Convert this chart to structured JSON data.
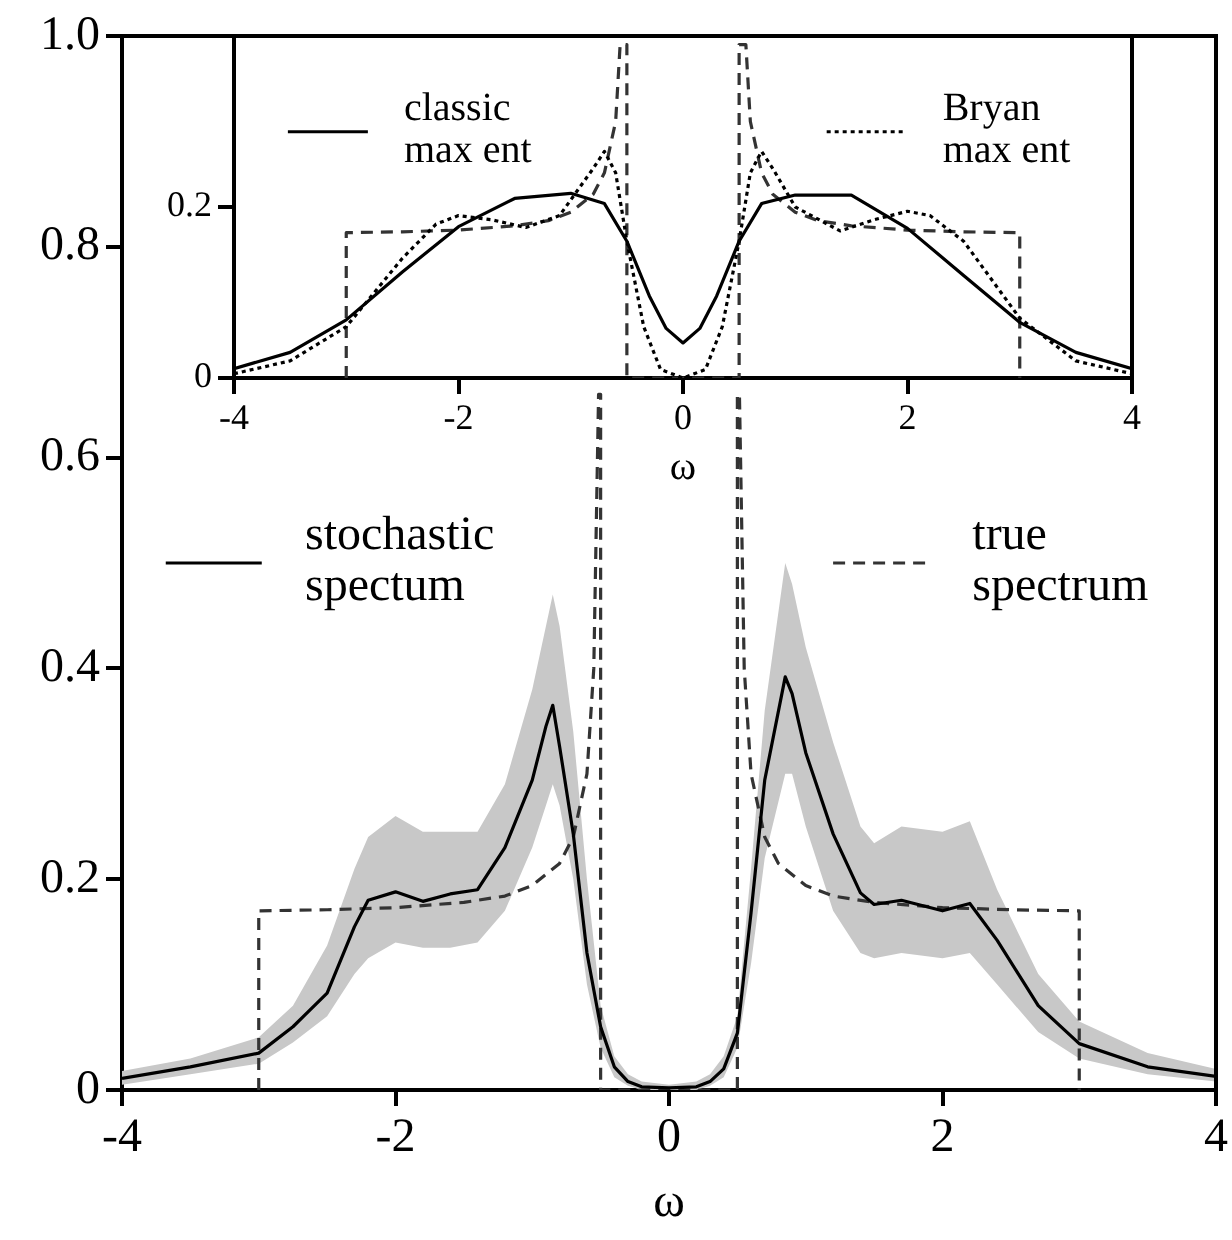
{
  "chart_data": [
    {
      "type": "line",
      "xlabel": "ω",
      "xlim": [
        -4,
        4
      ],
      "xticks": [
        -4,
        -2,
        0,
        2,
        4
      ],
      "ylim": [
        0,
        1
      ],
      "yticks": [
        0,
        0.2,
        0.4,
        0.6,
        0.8,
        {
          "value": 1,
          "label": "1.0"
        }
      ],
      "grid": false,
      "legend": "top",
      "series": [
        {
          "name": "stochastic spectum",
          "color": "#000000",
          "line_style": "solid",
          "x": [
            -4,
            -3.5,
            -3,
            -2.75,
            -2.5,
            -2.3,
            -2.2,
            -2,
            -1.8,
            -1.6,
            -1.4,
            -1.2,
            -1,
            -0.9,
            -0.85,
            -0.8,
            -0.7,
            -0.6,
            -0.5,
            -0.4,
            -0.3,
            -0.2,
            0,
            0.2,
            0.3,
            0.4,
            0.5,
            0.6,
            0.7,
            0.85,
            0.9,
            1,
            1.2,
            1.4,
            1.5,
            1.7,
            2,
            2.2,
            2.4,
            2.7,
            3,
            3.5,
            4
          ],
          "values": [
            0.011,
            0.022,
            0.035,
            0.06,
            0.092,
            0.155,
            0.18,
            0.188,
            0.179,
            0.186,
            0.19,
            0.23,
            0.294,
            0.345,
            0.365,
            0.326,
            0.243,
            0.13,
            0.06,
            0.022,
            0.008,
            0.003,
            0.002,
            0.003,
            0.008,
            0.02,
            0.054,
            0.168,
            0.294,
            0.392,
            0.376,
            0.32,
            0.243,
            0.187,
            0.176,
            0.18,
            0.17,
            0.177,
            0.142,
            0.08,
            0.044,
            0.022,
            0.013
          ],
          "lower": [
            0.005,
            0.015,
            0.025,
            0.045,
            0.07,
            0.11,
            0.125,
            0.14,
            0.135,
            0.135,
            0.14,
            0.17,
            0.23,
            0.27,
            0.29,
            0.27,
            0.2,
            0.1,
            0.04,
            0.012,
            0.004,
            0,
            0,
            0,
            0.004,
            0.012,
            0.04,
            0.12,
            0.22,
            0.3,
            0.3,
            0.25,
            0.17,
            0.13,
            0.125,
            0.13,
            0.125,
            0.13,
            0.1,
            0.055,
            0.03,
            0.015,
            0.008
          ],
          "upper": [
            0.018,
            0.03,
            0.05,
            0.08,
            0.137,
            0.21,
            0.24,
            0.26,
            0.245,
            0.245,
            0.245,
            0.29,
            0.38,
            0.44,
            0.47,
            0.44,
            0.34,
            0.2,
            0.08,
            0.032,
            0.015,
            0.008,
            0.005,
            0.008,
            0.015,
            0.032,
            0.07,
            0.21,
            0.36,
            0.5,
            0.48,
            0.42,
            0.33,
            0.25,
            0.234,
            0.25,
            0.245,
            0.255,
            0.19,
            0.11,
            0.065,
            0.035,
            0.02
          ]
        },
        {
          "name": "true spectrum",
          "color": "#333333",
          "line_style": "dashed",
          "x": [
            -3,
            -3,
            -2.5,
            -2,
            -1.5,
            -1.2,
            -1,
            -0.8,
            -0.7,
            -0.6,
            -0.55,
            -0.515,
            -0.5,
            -0.5,
            0.5,
            0.5,
            0.515,
            0.55,
            0.6,
            0.7,
            0.8,
            1,
            1.2,
            1.5,
            2,
            2.5,
            3,
            3
          ],
          "values": [
            0,
            0.17,
            0.171,
            0.173,
            0.178,
            0.184,
            0.194,
            0.215,
            0.24,
            0.3,
            0.4,
            0.66,
            0.66,
            0,
            0,
            0.66,
            0.66,
            0.4,
            0.3,
            0.24,
            0.215,
            0.194,
            0.184,
            0.178,
            0.173,
            0.171,
            0.17,
            0
          ]
        }
      ]
    },
    {
      "type": "line",
      "xlabel": "ω",
      "xlim": [
        -4,
        4
      ],
      "xticks": [
        -4,
        -2,
        0,
        2,
        4
      ],
      "ylim": [
        0,
        0.4
      ],
      "yticks": [
        0,
        0.2
      ],
      "grid": false,
      "legend": "top",
      "series": [
        {
          "name": "classic max ent",
          "color": "#000000",
          "line_style": "solid",
          "x": [
            -4,
            -3.5,
            -3,
            -2.5,
            -2,
            -1.5,
            -1,
            -0.7,
            -0.5,
            -0.3,
            -0.15,
            0,
            0.15,
            0.3,
            0.5,
            0.7,
            1,
            1.5,
            2,
            2.5,
            3,
            3.5,
            4
          ],
          "values": [
            0.011,
            0.03,
            0.068,
            0.124,
            0.177,
            0.21,
            0.216,
            0.204,
            0.16,
            0.096,
            0.058,
            0.041,
            0.058,
            0.096,
            0.16,
            0.204,
            0.214,
            0.214,
            0.175,
            0.12,
            0.065,
            0.03,
            0.011
          ]
        },
        {
          "name": "Bryan max ent",
          "color": "#000000",
          "line_style": "dotted",
          "x": [
            -4,
            -3.5,
            -3,
            -2.5,
            -2.2,
            -2,
            -1.7,
            -1.4,
            -1.1,
            -0.8,
            -0.7,
            -0.6,
            -0.5,
            -0.35,
            -0.2,
            0,
            0.2,
            0.35,
            0.5,
            0.6,
            0.7,
            0.8,
            1,
            1.4,
            1.7,
            2,
            2.2,
            2.5,
            3,
            3.5,
            4
          ],
          "values": [
            0.005,
            0.02,
            0.06,
            0.14,
            0.18,
            0.19,
            0.185,
            0.176,
            0.19,
            0.245,
            0.265,
            0.24,
            0.16,
            0.06,
            0.01,
            0,
            0.01,
            0.06,
            0.16,
            0.24,
            0.265,
            0.245,
            0.2,
            0.172,
            0.185,
            0.195,
            0.19,
            0.16,
            0.07,
            0.02,
            0.005
          ]
        },
        {
          "color": "#333333",
          "line_style": "dashed",
          "x": [
            -3,
            -3,
            -2.5,
            -2,
            -1.5,
            -1.2,
            -1,
            -0.8,
            -0.7,
            -0.6,
            -0.56,
            -0.5,
            -0.5,
            0.5,
            0.5,
            0.56,
            0.6,
            0.7,
            0.8,
            1,
            1.2,
            1.5,
            2,
            2.5,
            3,
            3
          ],
          "values": [
            0,
            0.17,
            0.171,
            0.173,
            0.178,
            0.184,
            0.194,
            0.215,
            0.24,
            0.3,
            0.39,
            0.39,
            0,
            0,
            0.39,
            0.39,
            0.3,
            0.24,
            0.215,
            0.194,
            0.184,
            0.178,
            0.173,
            0.171,
            0.17,
            0
          ]
        }
      ]
    }
  ]
}
